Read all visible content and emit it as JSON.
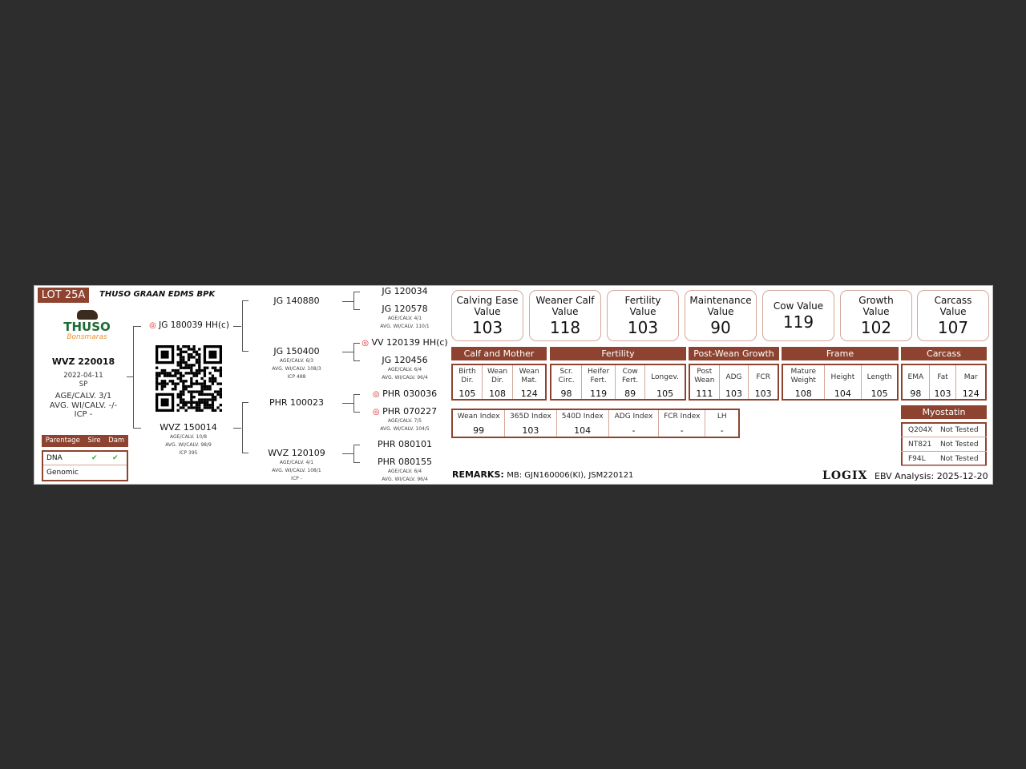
{
  "lot": "LOT 25A",
  "owner": "THUSO GRAAN EDMS BPK",
  "logo_text": "THUSO Bonsmaras",
  "animal": {
    "id": "WVZ 220018",
    "dob": "2022-04-11",
    "type": "SP",
    "age_calv": "AGE/CALV. 3/1",
    "avg_wi": "AVG. WI/CALV. -/-",
    "icp": "ICP -"
  },
  "parentage": {
    "headers": [
      "Parentage",
      "Sire",
      "Dam"
    ],
    "rows": [
      {
        "label": "DNA",
        "sire": "✔",
        "dam": "✔"
      },
      {
        "label": "Genomic",
        "sire": "",
        "dam": ""
      }
    ]
  },
  "sire": {
    "id": "JG 180039",
    "suffix": "HH(c)",
    "icon": "semen-target-icon"
  },
  "dam": {
    "id": "WVZ 150014",
    "lines": [
      "AGE/CALV. 10/8",
      "AVG. WI/CALV. 98/9",
      "ICP 395"
    ]
  },
  "grandparents": [
    {
      "id": "JG 140880",
      "lines": []
    },
    {
      "id": "JG 150400",
      "lines": [
        "AGE/CALV. 6/3",
        "AVG. WI/CALV. 108/3",
        "ICP 488"
      ]
    },
    {
      "id": "PHR 100023",
      "lines": []
    },
    {
      "id": "WVZ 120109",
      "lines": [
        "AGE/CALV. 4/1",
        "AVG. WI/CALV. 108/1",
        "ICP -"
      ]
    }
  ],
  "great_grandparents": [
    {
      "id": "JG 120034",
      "icon": false,
      "lines": []
    },
    {
      "id": "JG 120578",
      "icon": false,
      "lines": [
        "AGE/CALV. 4/1",
        "AVG. WI/CALV. 110/1"
      ]
    },
    {
      "id": "VV 120139 HH(c)",
      "icon": true,
      "lines": []
    },
    {
      "id": "JG 120456",
      "icon": false,
      "lines": [
        "AGE/CALV. 6/4",
        "AVG. WI/CALV. 96/4"
      ]
    },
    {
      "id": "PHR 030036",
      "icon": true,
      "lines": []
    },
    {
      "id": "PHR 070227",
      "icon": true,
      "lines": [
        "AGE/CALV. 7/5",
        "AVG. WI/CALV. 104/5"
      ]
    },
    {
      "id": "PHR 080101",
      "icon": false,
      "lines": []
    },
    {
      "id": "PHR 080155",
      "icon": false,
      "lines": [
        "AGE/CALV. 6/4",
        "AVG. WI/CALV. 96/4"
      ]
    }
  ],
  "values": [
    {
      "l1": "Calving Ease",
      "l2": "Value",
      "v": "103"
    },
    {
      "l1": "Weaner Calf",
      "l2": "Value",
      "v": "118"
    },
    {
      "l1": "Fertility",
      "l2": "Value",
      "v": "103"
    },
    {
      "l1": "Maintenance",
      "l2": "Value",
      "v": "90"
    },
    {
      "l1": "Cow Value",
      "l2": "",
      "v": "119"
    },
    {
      "l1": "Growth",
      "l2": "Value",
      "v": "102"
    },
    {
      "l1": "Carcass",
      "l2": "Value",
      "v": "107"
    }
  ],
  "sections": [
    "Calf and Mother",
    "Fertility",
    "Post-Wean Growth",
    "Frame",
    "Carcass"
  ],
  "ebvs": [
    [
      {
        "l": "Birth Dir.",
        "v": "105"
      },
      {
        "l": "Wean Dir.",
        "v": "108"
      },
      {
        "l": "Wean Mat.",
        "v": "124"
      }
    ],
    [
      {
        "l": "Scr. Circ.",
        "v": "98"
      },
      {
        "l": "Heifer Fert.",
        "v": "119"
      },
      {
        "l": "Cow Fert.",
        "v": "89"
      },
      {
        "l": "Longev.",
        "v": "105"
      }
    ],
    [
      {
        "l": "Post Wean",
        "v": "111"
      },
      {
        "l": "ADG",
        "v": "103"
      },
      {
        "l": "FCR",
        "v": "103"
      }
    ],
    [
      {
        "l": "Mature Weight",
        "v": "108"
      },
      {
        "l": "Height",
        "v": "104"
      },
      {
        "l": "Length",
        "v": "105"
      }
    ],
    [
      {
        "l": "EMA",
        "v": "98"
      },
      {
        "l": "Fat",
        "v": "103"
      },
      {
        "l": "Mar",
        "v": "124"
      }
    ]
  ],
  "indexes": [
    {
      "l": "Wean Index",
      "v": "99"
    },
    {
      "l": "365D Index",
      "v": "103"
    },
    {
      "l": "540D Index",
      "v": "104"
    },
    {
      "l": "ADG Index",
      "v": "-"
    },
    {
      "l": "FCR Index",
      "v": "-"
    },
    {
      "l": "LH",
      "v": "-"
    }
  ],
  "myostatin": {
    "title": "Myostatin",
    "rows": [
      {
        "g": "Q204X",
        "s": "Not Tested"
      },
      {
        "g": "NT821",
        "s": "Not Tested"
      },
      {
        "g": "F94L",
        "s": "Not Tested"
      }
    ]
  },
  "remarks": {
    "label": "REMARKS:",
    "text": "MB: GJN160006(KI), JSM220121"
  },
  "brand": "LOGIX",
  "analysis": "EBV Analysis: 2025-12-20",
  "colors": {
    "accent": "#8e4330",
    "border_light": "#d4a79a",
    "check": "#3a3"
  }
}
